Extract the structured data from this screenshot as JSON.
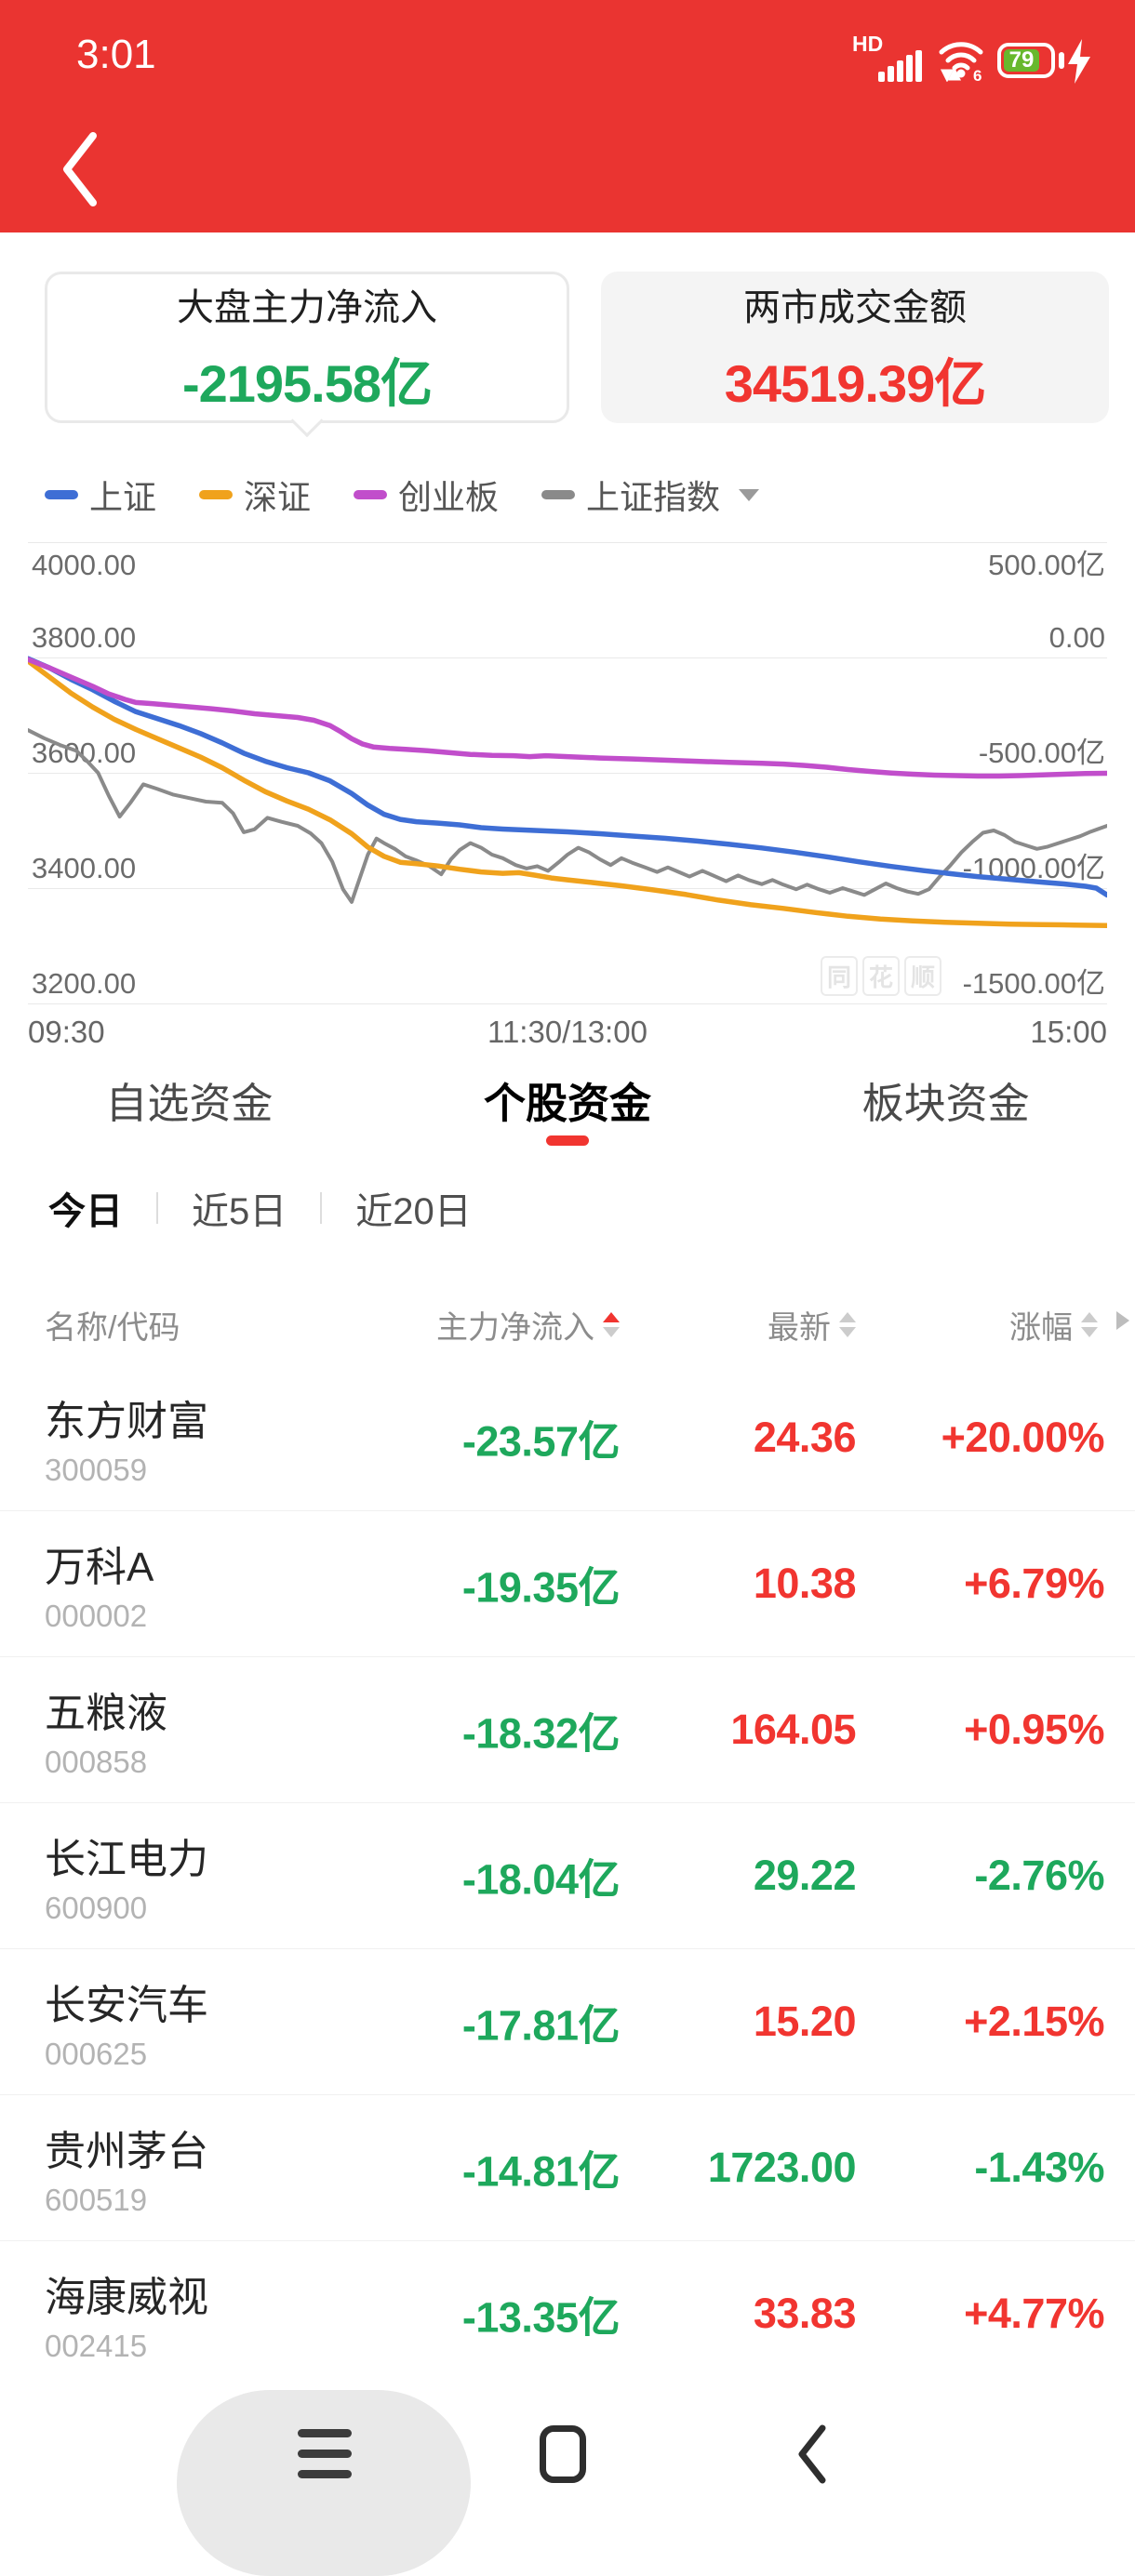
{
  "status_bar": {
    "time": "3:01",
    "hd_label": "HD",
    "wifi_label": "6",
    "battery_percent": "79"
  },
  "cards": [
    {
      "title": "大盘主力净流入",
      "value": "-2195.58亿",
      "value_color": "green",
      "selected": true
    },
    {
      "title": "两市成交金额",
      "value": "34519.39亿",
      "value_color": "red",
      "selected": false
    }
  ],
  "legend": {
    "items": [
      {
        "label": "上证",
        "color": "#3e6ed5"
      },
      {
        "label": "深证",
        "color": "#f0a21c"
      },
      {
        "label": "创业板",
        "color": "#c14ecb"
      },
      {
        "label": "上证指数",
        "color": "#8a8a8a",
        "dropdown": true
      }
    ]
  },
  "watermark": "同花顺",
  "chart_data": {
    "type": "line",
    "x_axis": {
      "labels": [
        "09:30",
        "11:30/13:00",
        "15:00"
      ],
      "range": [
        0,
        1
      ]
    },
    "left_axis": {
      "ticks": [
        "4000.00",
        "3800.00",
        "3600.00",
        "3400.00",
        "3200.00"
      ],
      "range": [
        3200,
        4000
      ]
    },
    "right_axis": {
      "ticks": [
        "500.00亿",
        "0.00",
        "-500.00亿",
        "-1000.00亿",
        "-1500.00亿"
      ],
      "range": [
        -1500,
        500
      ]
    },
    "grid": true,
    "legend_position": "top",
    "series": [
      {
        "name": "上证",
        "axis": "right",
        "color": "#3e6ed5",
        "points": [
          [
            0,
            -5
          ],
          [
            0.02,
            -45
          ],
          [
            0.04,
            -95
          ],
          [
            0.06,
            -140
          ],
          [
            0.08,
            -190
          ],
          [
            0.1,
            -235
          ],
          [
            0.12,
            -265
          ],
          [
            0.14,
            -295
          ],
          [
            0.16,
            -330
          ],
          [
            0.18,
            -370
          ],
          [
            0.2,
            -415
          ],
          [
            0.22,
            -450
          ],
          [
            0.24,
            -478
          ],
          [
            0.26,
            -500
          ],
          [
            0.28,
            -535
          ],
          [
            0.3,
            -590
          ],
          [
            0.315,
            -640
          ],
          [
            0.33,
            -680
          ],
          [
            0.345,
            -702
          ],
          [
            0.36,
            -712
          ],
          [
            0.38,
            -718
          ],
          [
            0.4,
            -726
          ],
          [
            0.42,
            -738
          ],
          [
            0.44,
            -744
          ],
          [
            0.46,
            -748
          ],
          [
            0.48,
            -752
          ],
          [
            0.5,
            -756
          ],
          [
            0.53,
            -764
          ],
          [
            0.56,
            -774
          ],
          [
            0.59,
            -784
          ],
          [
            0.62,
            -796
          ],
          [
            0.65,
            -810
          ],
          [
            0.68,
            -826
          ],
          [
            0.71,
            -844
          ],
          [
            0.74,
            -864
          ],
          [
            0.77,
            -886
          ],
          [
            0.8,
            -906
          ],
          [
            0.83,
            -924
          ],
          [
            0.86,
            -940
          ],
          [
            0.88,
            -950
          ],
          [
            0.9,
            -958
          ],
          [
            0.92,
            -966
          ],
          [
            0.94,
            -974
          ],
          [
            0.96,
            -982
          ],
          [
            0.98,
            -992
          ],
          [
            0.99,
            -1000
          ],
          [
            1,
            -1030
          ]
        ]
      },
      {
        "name": "深证",
        "axis": "right",
        "color": "#f0a21c",
        "points": [
          [
            0,
            -15
          ],
          [
            0.02,
            -85
          ],
          [
            0.04,
            -155
          ],
          [
            0.06,
            -215
          ],
          [
            0.08,
            -268
          ],
          [
            0.1,
            -312
          ],
          [
            0.12,
            -352
          ],
          [
            0.14,
            -392
          ],
          [
            0.16,
            -432
          ],
          [
            0.18,
            -478
          ],
          [
            0.2,
            -532
          ],
          [
            0.22,
            -582
          ],
          [
            0.24,
            -622
          ],
          [
            0.26,
            -658
          ],
          [
            0.28,
            -704
          ],
          [
            0.3,
            -764
          ],
          [
            0.315,
            -822
          ],
          [
            0.33,
            -862
          ],
          [
            0.345,
            -888
          ],
          [
            0.36,
            -894
          ],
          [
            0.38,
            -904
          ],
          [
            0.4,
            -918
          ],
          [
            0.42,
            -930
          ],
          [
            0.44,
            -936
          ],
          [
            0.455,
            -933
          ],
          [
            0.47,
            -944
          ],
          [
            0.485,
            -956
          ],
          [
            0.5,
            -964
          ],
          [
            0.52,
            -974
          ],
          [
            0.55,
            -990
          ],
          [
            0.58,
            -1008
          ],
          [
            0.61,
            -1028
          ],
          [
            0.64,
            -1052
          ],
          [
            0.67,
            -1072
          ],
          [
            0.7,
            -1088
          ],
          [
            0.73,
            -1106
          ],
          [
            0.76,
            -1122
          ],
          [
            0.79,
            -1134
          ],
          [
            0.82,
            -1142
          ],
          [
            0.85,
            -1148
          ],
          [
            0.88,
            -1152
          ],
          [
            0.91,
            -1156
          ],
          [
            0.94,
            -1158
          ],
          [
            0.97,
            -1160
          ],
          [
            1,
            -1162
          ]
        ]
      },
      {
        "name": "创业板",
        "axis": "right",
        "color": "#c14ecb",
        "points": [
          [
            0,
            -8
          ],
          [
            0.02,
            -45
          ],
          [
            0.04,
            -85
          ],
          [
            0.06,
            -125
          ],
          [
            0.075,
            -158
          ],
          [
            0.09,
            -182
          ],
          [
            0.1,
            -195
          ],
          [
            0.115,
            -200
          ],
          [
            0.13,
            -206
          ],
          [
            0.15,
            -214
          ],
          [
            0.17,
            -222
          ],
          [
            0.19,
            -232
          ],
          [
            0.21,
            -244
          ],
          [
            0.23,
            -252
          ],
          [
            0.25,
            -260
          ],
          [
            0.265,
            -272
          ],
          [
            0.28,
            -295
          ],
          [
            0.29,
            -322
          ],
          [
            0.3,
            -352
          ],
          [
            0.31,
            -375
          ],
          [
            0.32,
            -388
          ],
          [
            0.335,
            -394
          ],
          [
            0.35,
            -398
          ],
          [
            0.37,
            -404
          ],
          [
            0.39,
            -412
          ],
          [
            0.41,
            -420
          ],
          [
            0.43,
            -424
          ],
          [
            0.45,
            -426
          ],
          [
            0.465,
            -430
          ],
          [
            0.48,
            -426
          ],
          [
            0.5,
            -430
          ],
          [
            0.53,
            -436
          ],
          [
            0.56,
            -440
          ],
          [
            0.59,
            -445
          ],
          [
            0.62,
            -450
          ],
          [
            0.65,
            -455
          ],
          [
            0.68,
            -459
          ],
          [
            0.7,
            -462
          ],
          [
            0.72,
            -468
          ],
          [
            0.74,
            -476
          ],
          [
            0.76,
            -486
          ],
          [
            0.78,
            -494
          ],
          [
            0.8,
            -501
          ],
          [
            0.82,
            -506
          ],
          [
            0.84,
            -510
          ],
          [
            0.86,
            -512
          ],
          [
            0.88,
            -514
          ],
          [
            0.9,
            -514
          ],
          [
            0.92,
            -512
          ],
          [
            0.94,
            -509
          ],
          [
            0.96,
            -506
          ],
          [
            0.98,
            -503
          ],
          [
            1,
            -502
          ]
        ]
      },
      {
        "name": "上证指数",
        "axis": "left",
        "color": "#8a8a8a",
        "points": [
          [
            0,
            3674
          ],
          [
            0.015,
            3660
          ],
          [
            0.03,
            3648
          ],
          [
            0.045,
            3638
          ],
          [
            0.055,
            3620
          ],
          [
            0.065,
            3600
          ],
          [
            0.075,
            3560
          ],
          [
            0.085,
            3524
          ],
          [
            0.095,
            3548
          ],
          [
            0.107,
            3580
          ],
          [
            0.12,
            3572
          ],
          [
            0.135,
            3562
          ],
          [
            0.15,
            3556
          ],
          [
            0.165,
            3550
          ],
          [
            0.18,
            3548
          ],
          [
            0.19,
            3530
          ],
          [
            0.2,
            3497
          ],
          [
            0.21,
            3502
          ],
          [
            0.222,
            3522
          ],
          [
            0.235,
            3515
          ],
          [
            0.25,
            3508
          ],
          [
            0.262,
            3495
          ],
          [
            0.272,
            3478
          ],
          [
            0.282,
            3446
          ],
          [
            0.292,
            3398
          ],
          [
            0.3,
            3376
          ],
          [
            0.308,
            3420
          ],
          [
            0.315,
            3458
          ],
          [
            0.323,
            3486
          ],
          [
            0.33,
            3478
          ],
          [
            0.34,
            3468
          ],
          [
            0.35,
            3455
          ],
          [
            0.36,
            3448
          ],
          [
            0.372,
            3438
          ],
          [
            0.383,
            3424
          ],
          [
            0.392,
            3450
          ],
          [
            0.4,
            3466
          ],
          [
            0.41,
            3478
          ],
          [
            0.42,
            3470
          ],
          [
            0.43,
            3458
          ],
          [
            0.44,
            3452
          ],
          [
            0.452,
            3440
          ],
          [
            0.462,
            3434
          ],
          [
            0.472,
            3438
          ],
          [
            0.482,
            3430
          ],
          [
            0.492,
            3445
          ],
          [
            0.5,
            3458
          ],
          [
            0.51,
            3470
          ],
          [
            0.52,
            3462
          ],
          [
            0.53,
            3450
          ],
          [
            0.54,
            3440
          ],
          [
            0.55,
            3452
          ],
          [
            0.56,
            3444
          ],
          [
            0.572,
            3436
          ],
          [
            0.583,
            3428
          ],
          [
            0.593,
            3436
          ],
          [
            0.603,
            3428
          ],
          [
            0.613,
            3420
          ],
          [
            0.625,
            3430
          ],
          [
            0.635,
            3422
          ],
          [
            0.647,
            3412
          ],
          [
            0.658,
            3422
          ],
          [
            0.668,
            3414
          ],
          [
            0.68,
            3407
          ],
          [
            0.69,
            3414
          ],
          [
            0.7,
            3406
          ],
          [
            0.712,
            3398
          ],
          [
            0.722,
            3406
          ],
          [
            0.733,
            3398
          ],
          [
            0.743,
            3392
          ],
          [
            0.755,
            3400
          ],
          [
            0.765,
            3394
          ],
          [
            0.775,
            3388
          ],
          [
            0.785,
            3398
          ],
          [
            0.795,
            3408
          ],
          [
            0.805,
            3400
          ],
          [
            0.815,
            3394
          ],
          [
            0.825,
            3390
          ],
          [
            0.835,
            3398
          ],
          [
            0.845,
            3420
          ],
          [
            0.855,
            3440
          ],
          [
            0.865,
            3462
          ],
          [
            0.875,
            3480
          ],
          [
            0.885,
            3496
          ],
          [
            0.895,
            3500
          ],
          [
            0.905,
            3492
          ],
          [
            0.915,
            3480
          ],
          [
            0.925,
            3474
          ],
          [
            0.935,
            3468
          ],
          [
            0.945,
            3472
          ],
          [
            0.955,
            3478
          ],
          [
            0.965,
            3484
          ],
          [
            0.975,
            3490
          ],
          [
            0.985,
            3498
          ],
          [
            1,
            3508
          ]
        ]
      }
    ]
  },
  "tabs": {
    "items": [
      "自选资金",
      "个股资金",
      "板块资金"
    ],
    "active_index": 1
  },
  "period_tabs": {
    "items": [
      "今日",
      "近5日",
      "近20日"
    ],
    "active_index": 0
  },
  "table": {
    "columns": [
      {
        "label": "名称/代码",
        "sort": null
      },
      {
        "label": "主力净流入",
        "sort": "asc"
      },
      {
        "label": "最新",
        "sort": "none"
      },
      {
        "label": "涨幅",
        "sort": "none"
      }
    ],
    "rows": [
      {
        "name": "东方财富",
        "code": "300059",
        "flow": "-23.57亿",
        "flow_color": "green",
        "last": "24.36",
        "last_color": "red",
        "change": "+20.00%",
        "change_color": "red"
      },
      {
        "name": "万科A",
        "code": "000002",
        "flow": "-19.35亿",
        "flow_color": "green",
        "last": "10.38",
        "last_color": "red",
        "change": "+6.79%",
        "change_color": "red"
      },
      {
        "name": "五粮液",
        "code": "000858",
        "flow": "-18.32亿",
        "flow_color": "green",
        "last": "164.05",
        "last_color": "red",
        "change": "+0.95%",
        "change_color": "red"
      },
      {
        "name": "长江电力",
        "code": "600900",
        "flow": "-18.04亿",
        "flow_color": "green",
        "last": "29.22",
        "last_color": "green",
        "change": "-2.76%",
        "change_color": "green"
      },
      {
        "name": "长安汽车",
        "code": "000625",
        "flow": "-17.81亿",
        "flow_color": "green",
        "last": "15.20",
        "last_color": "red",
        "change": "+2.15%",
        "change_color": "red"
      },
      {
        "name": "贵州茅台",
        "code": "600519",
        "flow": "-14.81亿",
        "flow_color": "green",
        "last": "1723.00",
        "last_color": "green",
        "change": "-1.43%",
        "change_color": "green"
      },
      {
        "name": "海康威视",
        "code": "002415",
        "flow": "-13.35亿",
        "flow_color": "green",
        "last": "33.83",
        "last_color": "red",
        "change": "+4.77%",
        "change_color": "red"
      }
    ]
  }
}
